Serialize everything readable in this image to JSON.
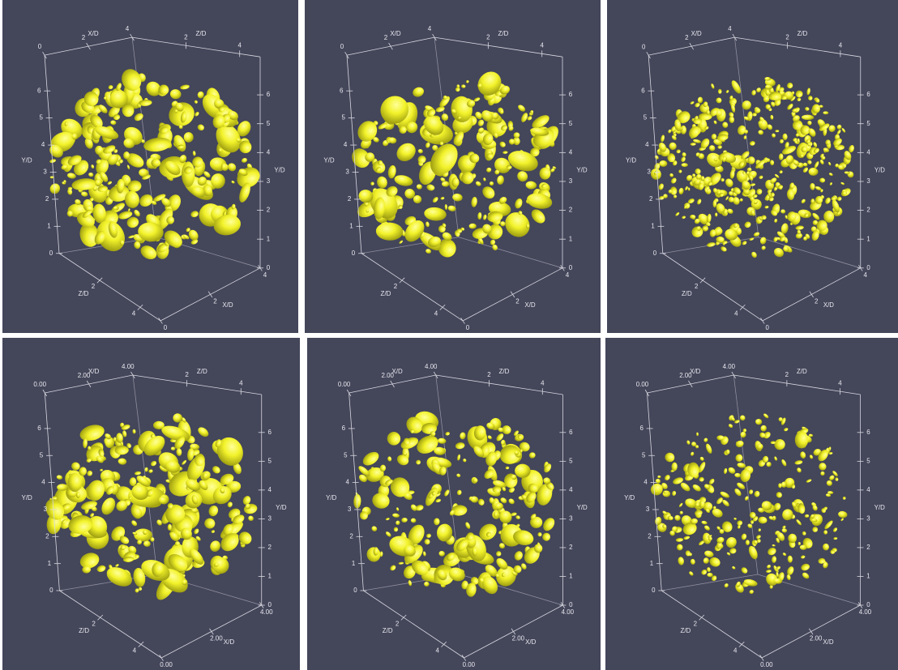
{
  "panels": [
    {
      "x_top": {
        "label": "X/D",
        "ticks": [
          "0",
          "2",
          "4"
        ]
      },
      "z_top": {
        "label": "Z/D",
        "ticks": [
          "2",
          "4"
        ]
      },
      "y_left": {
        "label": "Y/D",
        "ticks": [
          "0",
          "1",
          "2",
          "3",
          "4",
          "5",
          "6"
        ]
      },
      "y_right": {
        "label": "Y/D",
        "ticks": [
          "0",
          "1",
          "2",
          "3",
          "4",
          "5",
          "6"
        ]
      },
      "z_bottom": {
        "label": "Z/D",
        "ticks": [
          "2",
          "4"
        ]
      },
      "x_bottom": {
        "label": "X/D",
        "ticks": [
          "0",
          "2",
          "4"
        ]
      }
    },
    {
      "x_top": {
        "label": "X/D",
        "ticks": [
          "0",
          "2",
          "4"
        ]
      },
      "z_top": {
        "label": "Z/D",
        "ticks": [
          "2",
          "4"
        ]
      },
      "y_left": {
        "label": "Y/D",
        "ticks": [
          "0",
          "1",
          "2",
          "3",
          "4",
          "5",
          "6"
        ]
      },
      "y_right": {
        "label": "Y/D",
        "ticks": [
          "0",
          "1",
          "2",
          "3",
          "4",
          "5",
          "6"
        ]
      },
      "z_bottom": {
        "label": "Z/D",
        "ticks": [
          "2",
          "4"
        ]
      },
      "x_bottom": {
        "label": "X/D",
        "ticks": [
          "0",
          "2",
          "4"
        ]
      }
    },
    {
      "x_top": {
        "label": "X/D",
        "ticks": [
          "0",
          "2",
          "4"
        ]
      },
      "z_top": {
        "label": "Z/D",
        "ticks": [
          "2",
          "4"
        ]
      },
      "y_left": {
        "label": "Y/D",
        "ticks": [
          "0",
          "1",
          "2",
          "3",
          "4",
          "5",
          "6"
        ]
      },
      "y_right": {
        "label": "Y/D",
        "ticks": [
          "0",
          "1",
          "2",
          "3",
          "4",
          "5",
          "6"
        ]
      },
      "z_bottom": {
        "label": "Z/D",
        "ticks": [
          "2",
          "4"
        ]
      },
      "x_bottom": {
        "label": "X/D",
        "ticks": [
          "0",
          "2",
          "4"
        ]
      }
    },
    {
      "x_top": {
        "label": "X/D",
        "ticks": [
          "0.00",
          "2.00",
          "4.00"
        ]
      },
      "z_top": {
        "label": "Z/D",
        "ticks": [
          "2",
          "4"
        ]
      },
      "y_left": {
        "label": "Y/D",
        "ticks": [
          "0",
          "1",
          "2",
          "3",
          "4",
          "5",
          "6"
        ]
      },
      "y_right": {
        "label": "Y/D",
        "ticks": [
          "0",
          "1",
          "2",
          "3",
          "4",
          "5",
          "6"
        ]
      },
      "z_bottom": {
        "label": "Z/D",
        "ticks": [
          "2",
          "4"
        ]
      },
      "x_bottom": {
        "label": "X/D",
        "ticks": [
          "0.00",
          "2.00",
          "4.00"
        ]
      }
    },
    {
      "x_top": {
        "label": "X/D",
        "ticks": [
          "0.00",
          "2.00",
          "4.00"
        ]
      },
      "z_top": {
        "label": "Z/D",
        "ticks": [
          "2",
          "4"
        ]
      },
      "y_left": {
        "label": "Y/D",
        "ticks": [
          "0",
          "1",
          "2",
          "3",
          "4",
          "5",
          "6"
        ]
      },
      "y_right": {
        "label": "Y/D",
        "ticks": [
          "0",
          "1",
          "2",
          "3",
          "4",
          "5",
          "6"
        ]
      },
      "z_bottom": {
        "label": "Z/D",
        "ticks": [
          "2",
          "4"
        ]
      },
      "x_bottom": {
        "label": "X/D",
        "ticks": [
          "0.00",
          "2.00",
          "4.00"
        ]
      }
    },
    {
      "x_top": {
        "label": "X/D",
        "ticks": [
          "0.00",
          "2.00",
          "4.00"
        ]
      },
      "z_top": {
        "label": "Z/D",
        "ticks": [
          "2",
          "4"
        ]
      },
      "y_left": {
        "label": "Y/D",
        "ticks": [
          "0",
          "1",
          "2",
          "3",
          "4",
          "5",
          "6"
        ]
      },
      "y_right": {
        "label": "Y/D",
        "ticks": [
          "0",
          "1",
          "2",
          "3",
          "4",
          "5",
          "6"
        ]
      },
      "z_bottom": {
        "label": "Z/D",
        "ticks": [
          "2",
          "4"
        ]
      },
      "x_bottom": {
        "label": "X/D",
        "ticks": [
          "0.00",
          "2.00",
          "4.00"
        ]
      }
    }
  ]
}
